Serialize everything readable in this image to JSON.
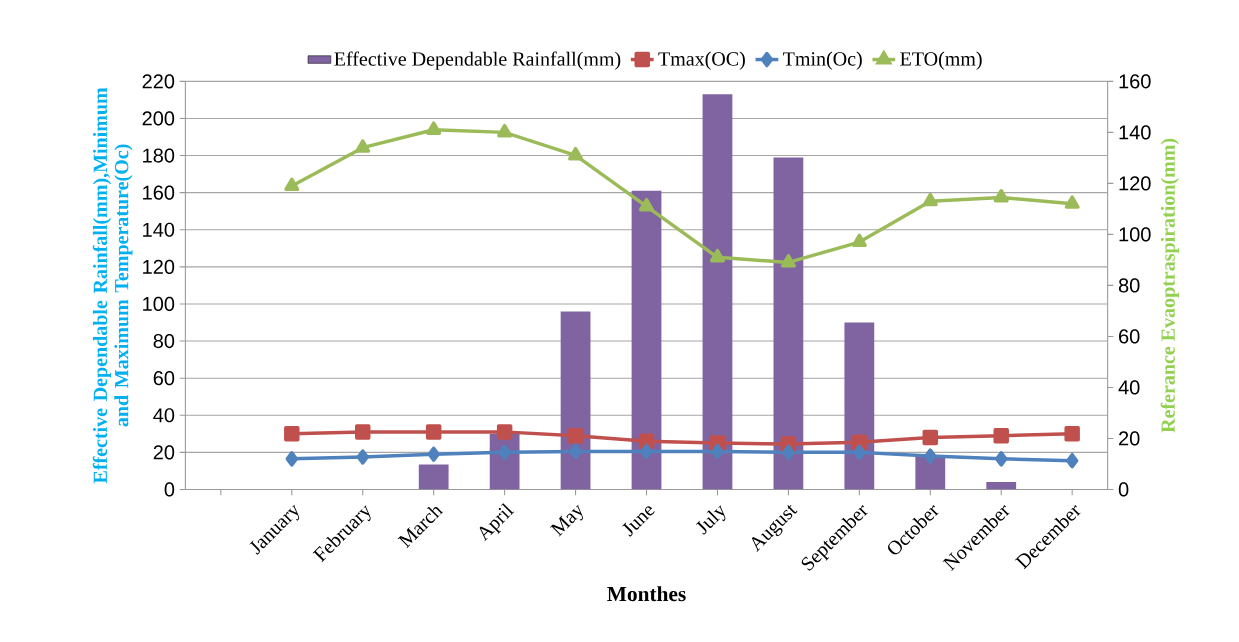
{
  "chart_data": {
    "type": "bar",
    "categories": [
      null,
      "January",
      "February",
      "March",
      "April",
      "May",
      "June",
      "July",
      "August",
      "September",
      "October",
      "November",
      "December"
    ],
    "series": [
      {
        "name": "Effective  Dependable Rainfall(mm)",
        "color": "#8064a2",
        "values": [
          null,
          0,
          0,
          13.5,
          30,
          96,
          161,
          213,
          179,
          90,
          18,
          4,
          0
        ]
      },
      {
        "name": "Tmax(OC)",
        "type": "line",
        "marker": "square",
        "color": "#c0504d",
        "values": [
          null,
          30,
          31,
          31,
          31,
          29,
          26,
          25,
          24.5,
          25.5,
          28,
          29,
          30
        ]
      },
      {
        "name": "Tmin(Oc)",
        "type": "line",
        "marker": "diamond",
        "color": "#4f81bd",
        "values": [
          null,
          16.5,
          17.5,
          19,
          20,
          20.5,
          20.5,
          20.5,
          20,
          20,
          18,
          16.5,
          15.5
        ]
      },
      {
        "name": "ETO(mm)",
        "type": "line",
        "marker": "triangle",
        "axis": "y2",
        "color": "#9bbb59",
        "values": [
          null,
          119,
          134,
          141,
          140,
          131,
          111,
          91,
          89,
          97,
          113,
          114.5,
          112
        ]
      }
    ],
    "xlabel": "Monthes",
    "ylabel": "Effective Dependable Rainfall(mm),Minimum and Maximum Temperature(Oc)",
    "y2label": "Referance Evaoptraspiration(mm)",
    "ylim": [
      0,
      220
    ],
    "yticks": [
      0,
      20,
      40,
      60,
      80,
      100,
      120,
      140,
      160,
      180,
      200,
      220
    ],
    "y2lim": [
      0,
      160
    ],
    "y2ticks": [
      0,
      20,
      40,
      60,
      80,
      100,
      120,
      140,
      160
    ],
    "grid": "y",
    "legend": "top"
  }
}
